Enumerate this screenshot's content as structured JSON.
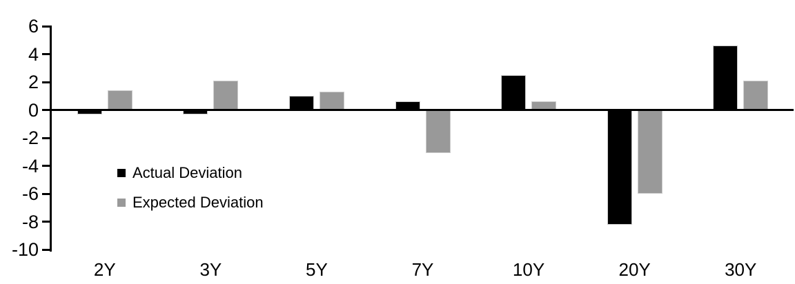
{
  "chart_data": {
    "type": "bar",
    "categories": [
      "2Y",
      "3Y",
      "5Y",
      "7Y",
      "10Y",
      "20Y",
      "30Y"
    ],
    "series": [
      {
        "name": "Actual Deviation",
        "color": "#000000",
        "values": [
          -0.3,
          -0.3,
          1.0,
          0.6,
          2.5,
          -8.2,
          4.6
        ]
      },
      {
        "name": "Expected Deviation",
        "color": "#999999",
        "values": [
          1.4,
          2.1,
          1.3,
          -3.1,
          0.6,
          -6.0,
          2.1
        ]
      }
    ],
    "title": "",
    "xlabel": "",
    "ylabel": "",
    "ylim": [
      -10,
      6
    ],
    "ytick_step": 2,
    "yticks": [
      6,
      4,
      2,
      0,
      -2,
      -4,
      -6,
      -8,
      -10
    ],
    "grid": false,
    "legend_position": "inside-left",
    "axis_color": "#000000",
    "bar_outline_color": "#cccccc",
    "background": "#ffffff"
  }
}
